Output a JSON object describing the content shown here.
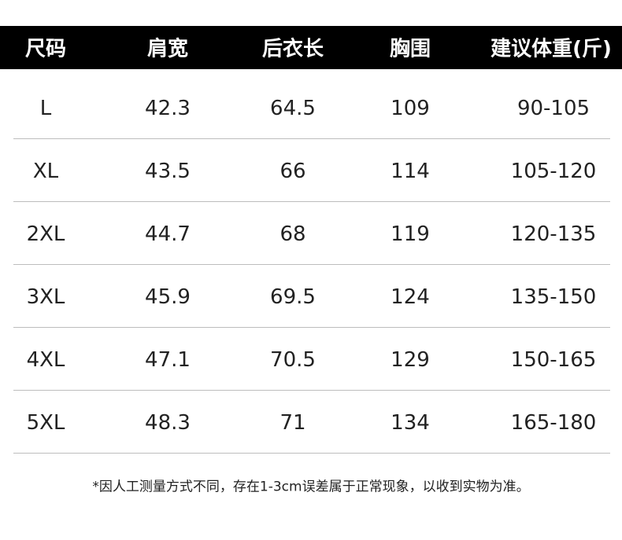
{
  "table": {
    "header": [
      "尺码",
      "肩宽",
      "后衣长",
      "胸围",
      "建议体重(斤)"
    ],
    "rows": [
      [
        "L",
        "42.3",
        "64.5",
        "109",
        "90-105"
      ],
      [
        "XL",
        "43.5",
        "66",
        "114",
        "105-120"
      ],
      [
        "2XL",
        "44.7",
        "68",
        "119",
        "120-135"
      ],
      [
        "3XL",
        "45.9",
        "69.5",
        "124",
        "135-150"
      ],
      [
        "4XL",
        "47.1",
        "70.5",
        "129",
        "150-165"
      ],
      [
        "5XL",
        "48.3",
        "71",
        "134",
        "165-180"
      ]
    ]
  },
  "note": "*因人工测量方式不同，存在1-3cm误差属于正常现象，以收到实物为准。"
}
